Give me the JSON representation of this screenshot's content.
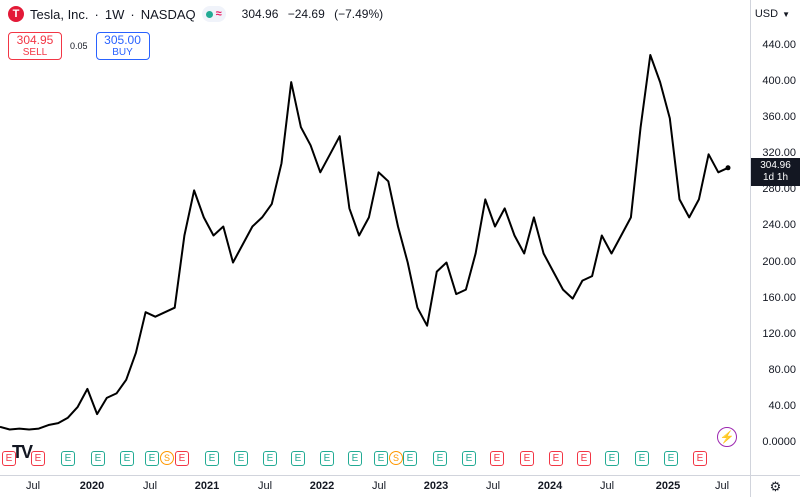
{
  "symbol": {
    "name": "Tesla, Inc.",
    "sep1": "·",
    "interval": "1W",
    "sep2": "·",
    "exchange": "NASDAQ",
    "logo_letter": "T",
    "status_icon": "wave-icon",
    "last": "304.96",
    "change": "−24.69",
    "change_pct": "(−7.49%)"
  },
  "trade": {
    "sell_price": "304.95",
    "sell_label": "SELL",
    "spread": "0.05",
    "buy_price": "305.00",
    "buy_label": "BUY"
  },
  "currency": "USD",
  "price_axis": {
    "labels": [
      "440.00",
      "400.00",
      "360.00",
      "320.00",
      "280.00",
      "240.00",
      "200.00",
      "160.00",
      "120.00",
      "80.00",
      "40.00",
      "0.0000"
    ],
    "last_price": "304.96",
    "countdown": "1d 1h"
  },
  "time_axis": [
    {
      "label": "Jul",
      "bold": false
    },
    {
      "label": "2020",
      "bold": true
    },
    {
      "label": "Jul",
      "bold": false
    },
    {
      "label": "2021",
      "bold": true
    },
    {
      "label": "Jul",
      "bold": false
    },
    {
      "label": "2022",
      "bold": true
    },
    {
      "label": "Jul",
      "bold": false
    },
    {
      "label": "2023",
      "bold": true
    },
    {
      "label": "Jul",
      "bold": false
    },
    {
      "label": "2024",
      "bold": true
    },
    {
      "label": "Jul",
      "bold": false
    },
    {
      "label": "2025",
      "bold": true
    },
    {
      "label": "Jul",
      "bold": false
    }
  ],
  "earnings_badges": [
    "E",
    "E",
    "E",
    "E",
    "E",
    "E",
    "E",
    "E",
    "E",
    "E",
    "E",
    "E",
    "E",
    "E",
    "E",
    "E",
    "E",
    "E",
    "E",
    "E",
    "E",
    "E",
    "E",
    "E",
    "E"
  ],
  "split_badges": [
    "S",
    "S"
  ],
  "watermark": "TV",
  "colors": {
    "line": "#000000",
    "sell": "#f23645",
    "buy": "#2962ff",
    "positive": "#22ab94",
    "negative": "#f23645",
    "split": "#ff9800"
  },
  "chart_data": {
    "type": "line",
    "ylim": [
      0,
      460
    ],
    "x_ticks": [
      "Jul 2019",
      "2020",
      "Jul 2020",
      "2021",
      "Jul 2021",
      "2022",
      "Jul 2022",
      "2023",
      "Jul 2023",
      "2024",
      "Jul 2024",
      "2025",
      "Jul 2025"
    ],
    "x": [
      "2019-05",
      "2019-06",
      "2019-07",
      "2019-08",
      "2019-09",
      "2019-10",
      "2019-11",
      "2019-12",
      "2020-01",
      "2020-02",
      "2020-03",
      "2020-04",
      "2020-05",
      "2020-06",
      "2020-07",
      "2020-08",
      "2020-09",
      "2020-10",
      "2020-11",
      "2020-12",
      "2021-01",
      "2021-02",
      "2021-03",
      "2021-04",
      "2021-05",
      "2021-06",
      "2021-07",
      "2021-08",
      "2021-09",
      "2021-10",
      "2021-11",
      "2021-12",
      "2022-01",
      "2022-02",
      "2022-03",
      "2022-04",
      "2022-05",
      "2022-06",
      "2022-07",
      "2022-08",
      "2022-09",
      "2022-10",
      "2022-11",
      "2022-12",
      "2023-01",
      "2023-02",
      "2023-03",
      "2023-04",
      "2023-05",
      "2023-06",
      "2023-07",
      "2023-08",
      "2023-09",
      "2023-10",
      "2023-11",
      "2023-12",
      "2024-01",
      "2024-02",
      "2024-03",
      "2024-04",
      "2024-05",
      "2024-06",
      "2024-07",
      "2024-08",
      "2024-09",
      "2024-10",
      "2024-11",
      "2024-12",
      "2025-01",
      "2025-02",
      "2025-03",
      "2025-04",
      "2025-05",
      "2025-06",
      "2025-07",
      "2025-08"
    ],
    "y": [
      18,
      15,
      16,
      15,
      16,
      20,
      22,
      28,
      40,
      60,
      32,
      50,
      55,
      70,
      100,
      145,
      140,
      145,
      150,
      230,
      280,
      250,
      230,
      240,
      200,
      220,
      240,
      250,
      265,
      310,
      400,
      350,
      330,
      300,
      320,
      340,
      260,
      230,
      250,
      300,
      290,
      240,
      200,
      150,
      130,
      190,
      200,
      165,
      170,
      210,
      270,
      240,
      260,
      230,
      210,
      250,
      210,
      190,
      170,
      160,
      180,
      185,
      230,
      210,
      230,
      250,
      350,
      430,
      400,
      360,
      270,
      250,
      270,
      320,
      300,
      305
    ]
  }
}
